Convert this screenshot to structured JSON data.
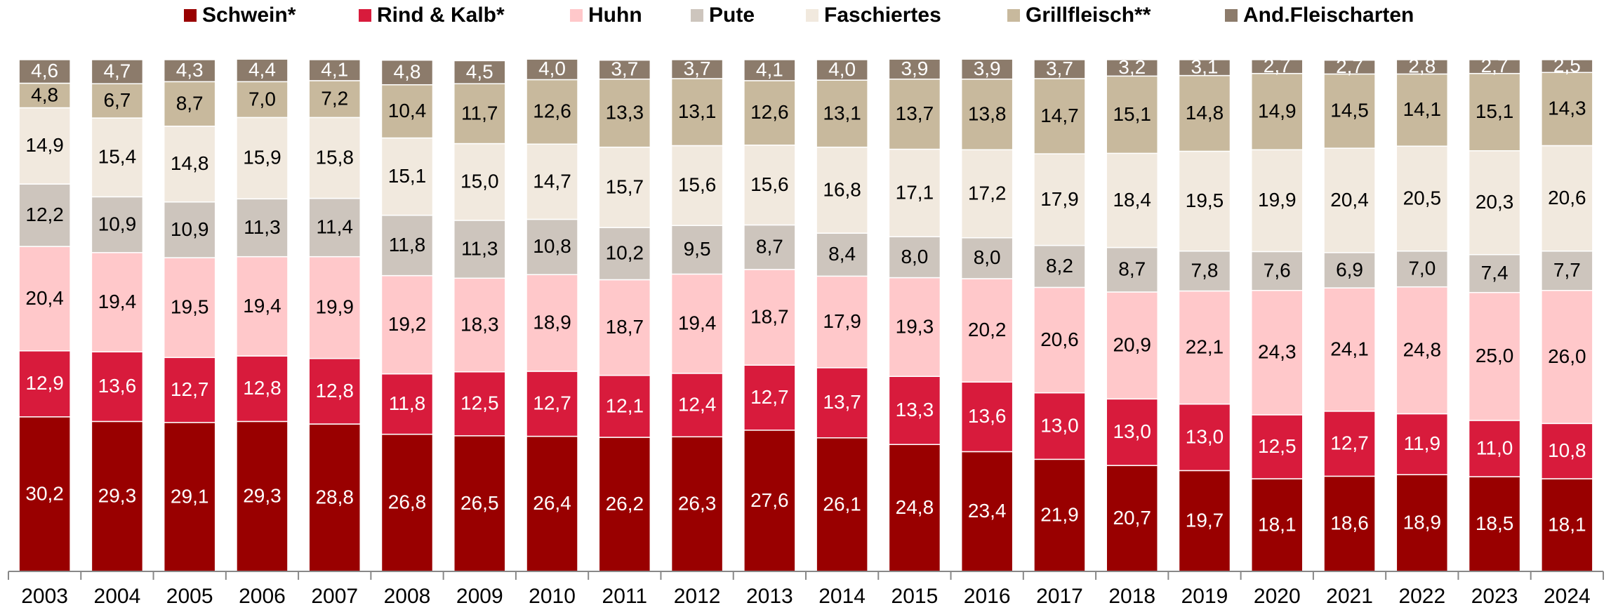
{
  "chart_data": {
    "type": "stacked_bar",
    "categories": [
      "2003",
      "2004",
      "2005",
      "2006",
      "2007",
      "2008",
      "2009",
      "2010",
      "2011",
      "2012",
      "2013",
      "2014",
      "2015",
      "2016",
      "2017",
      "2018",
      "2019",
      "2020",
      "2021",
      "2022",
      "2023",
      "2024"
    ],
    "ylim": [
      0,
      100
    ],
    "legend": "top",
    "series": [
      {
        "name": "Schwein*",
        "color": "#990000",
        "values": [
          30.2,
          29.3,
          29.1,
          29.3,
          28.8,
          26.8,
          26.5,
          26.4,
          26.2,
          26.3,
          27.6,
          26.1,
          24.8,
          23.4,
          21.9,
          20.7,
          19.7,
          18.1,
          18.6,
          18.9,
          18.5,
          18.1
        ],
        "value_labels": [
          "30,2",
          "29,3",
          "29,1",
          "29,3",
          "28,8",
          "26,8",
          "26,5",
          "26,4",
          "26,2",
          "26,3",
          "27,6",
          "26,1",
          "24,8",
          "23,4",
          "21,9",
          "20,7",
          "19,7",
          "18,1",
          "18,6",
          "18,9",
          "18,5",
          "18,1"
        ]
      },
      {
        "name": "Rind & Kalb*",
        "color": "#d81b3c",
        "values": [
          12.9,
          13.6,
          12.7,
          12.8,
          12.8,
          11.8,
          12.5,
          12.7,
          12.1,
          12.4,
          12.7,
          13.7,
          13.3,
          13.6,
          13.0,
          13.0,
          13.0,
          12.5,
          12.7,
          11.9,
          11.0,
          10.8
        ],
        "value_labels": [
          "12,9",
          "13,6",
          "12,7",
          "12,8",
          "12,8",
          "11,8",
          "12,5",
          "12,7",
          "12,1",
          "12,4",
          "12,7",
          "13,7",
          "13,3",
          "13,6",
          "13,0",
          "13,0",
          "13,0",
          "12,5",
          "12,7",
          "11,9",
          "11,0",
          "10,8"
        ]
      },
      {
        "name": "Huhn",
        "color": "#ffc8ca",
        "values": [
          20.4,
          19.4,
          19.5,
          19.4,
          19.9,
          19.2,
          18.3,
          18.9,
          18.7,
          19.4,
          18.7,
          17.9,
          19.3,
          20.2,
          20.6,
          20.9,
          22.1,
          24.3,
          24.1,
          24.8,
          25.0,
          26.0
        ],
        "value_labels": [
          "20,4",
          "19,4",
          "19,5",
          "19,4",
          "19,9",
          "19,2",
          "18,3",
          "18,9",
          "18,7",
          "19,4",
          "18,7",
          "17,9",
          "19,3",
          "20,2",
          "20,6",
          "20,9",
          "22,1",
          "24,3",
          "24,1",
          "24,8",
          "25,0",
          "26,0"
        ]
      },
      {
        "name": "Pute",
        "color": "#cdc5bd",
        "values": [
          12.2,
          10.9,
          10.9,
          11.3,
          11.4,
          11.8,
          11.3,
          10.8,
          10.2,
          9.5,
          8.7,
          8.4,
          8.0,
          8.0,
          8.2,
          8.7,
          7.8,
          7.6,
          6.9,
          7.0,
          7.4,
          7.7
        ],
        "value_labels": [
          "12,2",
          "10,9",
          "10,9",
          "11,3",
          "11,4",
          "11,8",
          "11,3",
          "10,8",
          "10,2",
          "9,5",
          "8,7",
          "8,4",
          "8,0",
          "8,0",
          "8,2",
          "8,7",
          "7,8",
          "7,6",
          "6,9",
          "7,0",
          "7,4",
          "7,7"
        ]
      },
      {
        "name": "Faschiertes",
        "color": "#f1e9de",
        "values": [
          14.9,
          15.4,
          14.8,
          15.9,
          15.8,
          15.1,
          15.0,
          14.7,
          15.7,
          15.6,
          15.6,
          16.8,
          17.1,
          17.2,
          17.9,
          18.4,
          19.5,
          19.9,
          20.4,
          20.5,
          20.3,
          20.6
        ],
        "value_labels": [
          "14,9",
          "15,4",
          "14,8",
          "15,9",
          "15,8",
          "15,1",
          "15,0",
          "14,7",
          "15,7",
          "15,6",
          "15,6",
          "16,8",
          "17,1",
          "17,2",
          "17,9",
          "18,4",
          "19,5",
          "19,9",
          "20,4",
          "20,5",
          "20,3",
          "20,6"
        ]
      },
      {
        "name": "Grillfleisch**",
        "color": "#c8b99d",
        "values": [
          4.8,
          6.7,
          8.7,
          7.0,
          7.2,
          10.4,
          11.7,
          12.6,
          13.3,
          13.1,
          12.6,
          13.1,
          13.7,
          13.8,
          14.7,
          15.1,
          14.8,
          14.9,
          14.5,
          14.1,
          15.1,
          14.3
        ],
        "value_labels": [
          "4,8",
          "6,7",
          "8,7",
          "7,0",
          "7,2",
          "10,4",
          "11,7",
          "12,6",
          "13,3",
          "13,1",
          "12,6",
          "13,1",
          "13,7",
          "13,8",
          "14,7",
          "15,1",
          "14,8",
          "14,9",
          "14,5",
          "14,1",
          "15,1",
          "14,3"
        ]
      },
      {
        "name": "And.Fleischarten",
        "color": "#8c7b6b",
        "values": [
          4.6,
          4.7,
          4.3,
          4.4,
          4.1,
          4.8,
          4.5,
          4.0,
          3.7,
          3.7,
          4.1,
          4.0,
          3.9,
          3.9,
          3.7,
          3.2,
          3.1,
          2.7,
          2.7,
          2.8,
          2.7,
          2.5
        ],
        "value_labels": [
          "4,6",
          "4,7",
          "4,3",
          "4,4",
          "4,1",
          "4,8",
          "4,5",
          "4,0",
          "3,7",
          "3,7",
          "4,1",
          "4,0",
          "3,9",
          "3,9",
          "3,7",
          "3,2",
          "3,1",
          "2,7",
          "2,7",
          "2,8",
          "2,7",
          "2,5"
        ]
      }
    ]
  }
}
